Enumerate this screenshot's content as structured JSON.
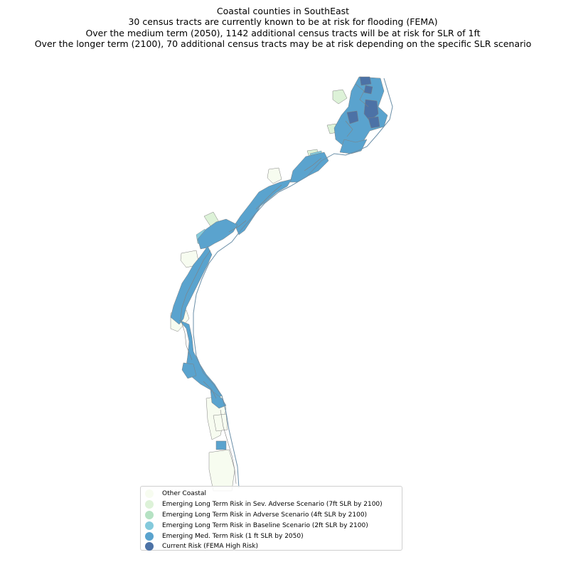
{
  "title": {
    "line1": "Coastal counties in SouthEast",
    "line2": "30 census tracts are currently known to be at risk for flooding (FEMA)",
    "line3": "Over the medium term (2050), 1142 additional census tracts will be at risk for SLR of 1ft",
    "line4": "Over the longer term (2100), 70 additional census tracts may be at risk depending on the specific SLR scenario"
  },
  "colors": {
    "other_coastal": "#f7fcf0",
    "sev_adverse": "#ddf2d8",
    "adverse": "#b5e2c3",
    "baseline": "#84cadc",
    "med_term": "#5aa3ce",
    "current": "#4c72a6",
    "boundary": "#808080"
  },
  "legend": [
    {
      "label": "Other Coastal",
      "color": "#f7fcf0"
    },
    {
      "label": "Emerging Long Term Risk in Sev. Adverse Scenario (7ft SLR by 2100)",
      "color": "#ddf2d8"
    },
    {
      "label": "Emerging Long Term Risk in Adverse Scenario (4ft SLR by 2100)",
      "color": "#b5e2c3"
    },
    {
      "label": "Emerging Long Term Risk in Baseline Scenario (2ft SLR by 2100)",
      "color": "#84cadc"
    },
    {
      "label": "Emerging Med. Term Risk (1 ft SLR by 2050)",
      "color": "#5aa3ce"
    },
    {
      "label": "Current Risk (FEMA High Risk)",
      "color": "#4c72a6"
    }
  ]
}
